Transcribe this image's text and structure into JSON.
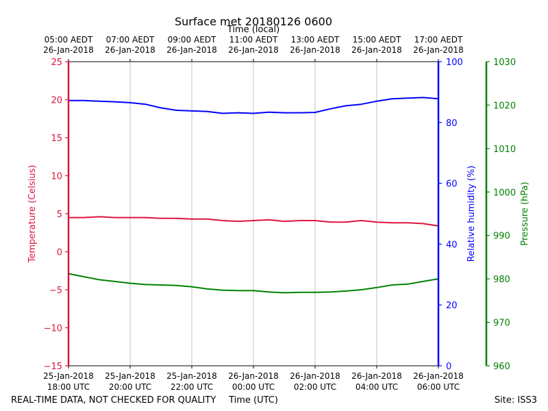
{
  "chart_data": {
    "type": "line",
    "title": "Surface met 20180126 0600",
    "top_axis_label": "Time (local)",
    "xlabel": "Time (UTC)",
    "footer_left": "REAL-TIME DATA, NOT CHECKED FOR QUALITY",
    "footer_right": "Site: ISS3",
    "x_range_hours": [
      0,
      12
    ],
    "x_ticks_hours": [
      0,
      2,
      4,
      6,
      8,
      10,
      12
    ],
    "utc_ticks": [
      {
        "date": "25-Jan-2018",
        "time": "18:00 UTC"
      },
      {
        "date": "25-Jan-2018",
        "time": "20:00 UTC"
      },
      {
        "date": "25-Jan-2018",
        "time": "22:00 UTC"
      },
      {
        "date": "26-Jan-2018",
        "time": "00:00 UTC"
      },
      {
        "date": "26-Jan-2018",
        "time": "02:00 UTC"
      },
      {
        "date": "26-Jan-2018",
        "time": "04:00 UTC"
      },
      {
        "date": "26-Jan-2018",
        "time": "06:00 UTC"
      }
    ],
    "local_ticks": [
      {
        "time": "05:00 AEDT",
        "date": "26-Jan-2018"
      },
      {
        "time": "07:00 AEDT",
        "date": "26-Jan-2018"
      },
      {
        "time": "09:00 AEDT",
        "date": "26-Jan-2018"
      },
      {
        "time": "11:00 AEDT",
        "date": "26-Jan-2018"
      },
      {
        "time": "13:00 AEDT",
        "date": "26-Jan-2018"
      },
      {
        "time": "15:00 AEDT",
        "date": "26-Jan-2018"
      },
      {
        "time": "17:00 AEDT",
        "date": "26-Jan-2018"
      }
    ],
    "axes": {
      "temperature": {
        "label": "Temperature (Celsius)",
        "range": [
          -15,
          25
        ],
        "ticks": [
          -15,
          -10,
          -5,
          0,
          5,
          10,
          15,
          20,
          25
        ],
        "tick_labels": [
          "−15",
          "−10",
          "−5",
          "0",
          "5",
          "10",
          "15",
          "20",
          "25"
        ],
        "color": "#dc143c"
      },
      "humidity": {
        "label": "Relative humidity (%)",
        "range": [
          0,
          100
        ],
        "ticks": [
          0,
          20,
          40,
          60,
          80,
          100
        ],
        "tick_labels": [
          "0",
          "20",
          "40",
          "60",
          "80",
          "100"
        ],
        "color": "#0000ff"
      },
      "pressure": {
        "label": "Pressure (hPa)",
        "range": [
          960,
          1030
        ],
        "ticks": [
          960,
          970,
          980,
          990,
          1000,
          1010,
          1020,
          1030
        ],
        "tick_labels": [
          "960",
          "970",
          "980",
          "990",
          "1000",
          "1010",
          "1020",
          "1030"
        ],
        "color": "#008000"
      }
    },
    "series": [
      {
        "name": "Temperature",
        "axis": "temperature",
        "color": "#dc143c",
        "x": [
          0,
          0.5,
          1,
          1.5,
          2,
          2.5,
          3,
          3.5,
          4,
          4.5,
          5,
          5.5,
          6,
          6.5,
          7,
          7.5,
          8,
          8.5,
          9,
          9.5,
          10,
          10.5,
          11,
          11.5,
          12
        ],
        "values": [
          4.5,
          4.5,
          4.6,
          4.5,
          4.5,
          4.5,
          4.4,
          4.4,
          4.3,
          4.3,
          4.1,
          4.0,
          4.1,
          4.2,
          4.0,
          4.1,
          4.1,
          3.9,
          3.9,
          4.1,
          3.9,
          3.8,
          3.8,
          3.7,
          3.4
        ]
      },
      {
        "name": "Relative humidity",
        "axis": "humidity",
        "color": "#0000ff",
        "x": [
          0,
          0.5,
          1,
          1.5,
          2,
          2.5,
          3,
          3.5,
          4,
          4.5,
          5,
          5.5,
          6,
          6.5,
          7,
          7.5,
          8,
          8.5,
          9,
          9.5,
          10,
          10.5,
          11,
          11.5,
          12
        ],
        "values": [
          87.2,
          87.2,
          87.0,
          86.8,
          86.5,
          86.0,
          84.8,
          84.0,
          83.8,
          83.6,
          83.0,
          83.2,
          83.0,
          83.4,
          83.2,
          83.2,
          83.3,
          84.5,
          85.5,
          86.0,
          87.0,
          87.8,
          88.0,
          88.2,
          87.8
        ]
      },
      {
        "name": "Pressure",
        "axis": "pressure",
        "color": "#008000",
        "x": [
          0,
          0.5,
          1,
          1.5,
          2,
          2.5,
          3,
          3.5,
          4,
          4.5,
          5,
          5.5,
          6,
          6.5,
          7,
          7.5,
          8,
          8.5,
          9,
          9.5,
          10,
          10.5,
          11,
          11.5,
          12
        ],
        "values": [
          981.2,
          980.5,
          979.8,
          979.4,
          979.0,
          978.7,
          978.6,
          978.5,
          978.2,
          977.7,
          977.4,
          977.3,
          977.3,
          977.0,
          976.8,
          976.9,
          976.9,
          977.0,
          977.2,
          977.5,
          978.0,
          978.6,
          978.8,
          979.4,
          980.0
        ]
      }
    ]
  }
}
